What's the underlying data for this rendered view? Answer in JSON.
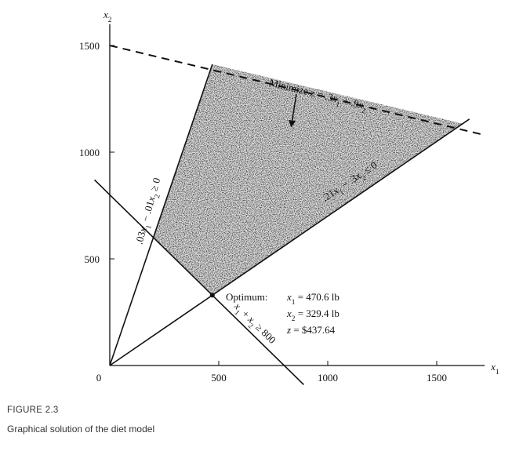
{
  "figure": {
    "number": "FIGURE 2.3",
    "caption": "Graphical solution of the diet model"
  },
  "chart_data": {
    "type": "line",
    "xlabel": "x1",
    "ylabel": "x2",
    "xlim": [
      0,
      1720
    ],
    "ylim": [
      0,
      1600
    ],
    "x_ticks": [
      0,
      500,
      1000,
      1500
    ],
    "y_ticks": [
      500,
      1000,
      1500
    ],
    "x_tick_labels": [
      "0",
      "500",
      "1000",
      "1500"
    ],
    "y_tick_labels": [
      "500",
      "1000",
      "1500"
    ],
    "constraints": [
      {
        "label": ".03x1 − .01x2 ≥ 0",
        "x": [
          0,
          470.6
        ],
        "y": [
          0,
          1411.8
        ],
        "x_end": 470.6,
        "style": "solid",
        "label_at_x": 240
      },
      {
        "label": ".21x1 − .3x2 ≤ 0",
        "x": [
          0,
          1650
        ],
        "y": [
          0,
          1155
        ],
        "style": "solid",
        "label_at_x": 1130
      },
      {
        "label": "x1 + x2 ≥ 800",
        "x": [
          -70,
          890
        ],
        "y": [
          870,
          -90
        ],
        "style": "solid",
        "label_at_x": 620
      }
    ],
    "objective": {
      "label": "Minimize z = .3x1 + .9x2",
      "x": [
        0,
        1720
      ],
      "y": [
        1500,
        1080
      ],
      "style": "dashed"
    },
    "feasible_region": {
      "vertices": [
        [
          200,
          600
        ],
        [
          470.6,
          329.4
        ],
        [
          1620,
          1134
        ],
        [
          470.6,
          1411.8
        ]
      ]
    },
    "optimum_point": {
      "x": 470.6,
      "y": 329.4
    },
    "optimum_annotation": {
      "lead": "Optimum:",
      "lines": [
        "x1 = 470.6 lb",
        "x2 = 329.4 lb",
        "z = $437.64"
      ]
    }
  }
}
